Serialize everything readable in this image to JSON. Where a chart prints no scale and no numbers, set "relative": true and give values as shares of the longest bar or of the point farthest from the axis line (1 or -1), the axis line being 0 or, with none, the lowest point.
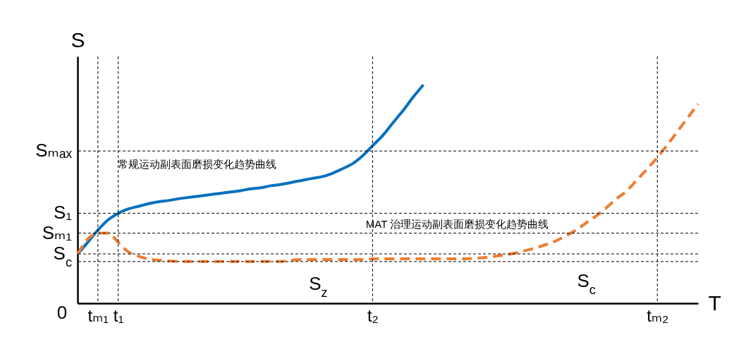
{
  "chart_data": {
    "type": "line",
    "xlabel": "T",
    "ylabel": "S",
    "relative": true,
    "categories": [
      null,
      null,
      "tₘ₁",
      null,
      "t₁",
      null,
      null,
      null,
      null,
      null,
      null,
      null,
      null,
      null,
      null,
      null,
      null,
      null,
      null,
      null,
      null,
      null,
      null,
      null,
      null,
      null,
      null,
      null,
      null,
      "t₂",
      null,
      null,
      null,
      null,
      null,
      null,
      null,
      null,
      null,
      null,
      null,
      null,
      null,
      null,
      null,
      null,
      null,
      null,
      null,
      null,
      null,
      null,
      null,
      null,
      null,
      null,
      null,
      "tₘ₂",
      null,
      null,
      null,
      null
    ],
    "series": [
      {
        "color": "#0070c0",
        "line_style": "solid",
        "values": [
          0.226,
          0.279,
          0.335,
          0.382,
          0.412,
          0.432,
          0.444,
          0.456,
          0.465,
          0.471,
          0.479,
          0.485,
          0.491,
          0.497,
          0.503,
          0.509,
          0.515,
          0.524,
          0.529,
          0.538,
          0.544,
          0.553,
          0.562,
          0.571,
          0.579,
          0.594,
          0.615,
          0.638,
          0.674,
          0.721,
          0.768,
          0.826,
          0.882,
          0.944,
          1,
          null,
          null,
          null,
          null,
          null,
          null,
          null,
          null,
          null,
          null,
          null,
          null,
          null,
          null,
          null,
          null,
          null,
          null,
          null,
          null,
          null,
          null,
          null,
          null,
          null,
          null,
          null
        ]
      },
      {
        "color": "#ed7d31",
        "line_style": "dashed",
        "values": [
          0.226,
          0.294,
          0.321,
          0.321,
          0.279,
          0.235,
          0.215,
          0.203,
          0.197,
          0.194,
          0.191,
          0.191,
          0.191,
          0.191,
          0.191,
          0.191,
          0.191,
          0.191,
          0.191,
          0.191,
          0.191,
          0.197,
          0.2,
          0.2,
          0.2,
          0.2,
          0.2,
          0.2,
          0.2,
          0.203,
          0.203,
          0.203,
          0.203,
          0.203,
          0.203,
          0.203,
          0.203,
          0.203,
          0.203,
          0.206,
          0.209,
          0.215,
          0.221,
          0.229,
          0.241,
          0.253,
          0.268,
          0.285,
          0.309,
          0.335,
          0.368,
          0.4,
          0.438,
          0.479,
          0.515,
          0.565,
          0.615,
          0.668,
          0.726,
          0.788,
          0.85,
          0.912
        ]
      }
    ],
    "ref_lines": [
      {
        "axis": "y",
        "value": 0.697,
        "label": "Sₘₐₓ",
        "color": "#000000",
        "line_style": "dashed"
      },
      {
        "axis": "y",
        "value": 0.412,
        "label": "S₁",
        "color": "#000000",
        "line_style": "dashed"
      },
      {
        "axis": "y",
        "value": 0.321,
        "label": "Sₘ₁",
        "color": "#000000",
        "line_style": "dashed"
      },
      {
        "axis": "y",
        "value": 0.226,
        "label": "S$_{c}$",
        "color": "#000000",
        "line_style": "dashed"
      },
      {
        "axis": "y",
        "value": 0.191,
        "label": null,
        "color": "#000000",
        "line_style": "dashed"
      },
      {
        "axis": "x",
        "value": "tₘ₁",
        "color": "#000000",
        "line_style": "dashed"
      },
      {
        "axis": "x",
        "value": "t₁",
        "color": "#000000",
        "line_style": "dashed"
      },
      {
        "axis": "x",
        "value": "t₂",
        "color": "#000000",
        "line_style": "dashed"
      },
      {
        "axis": "x",
        "value": "tₘ₂",
        "color": "#000000",
        "line_style": "dashed"
      }
    ],
    "annotations": [
      "常规运动副表面磨损变化趋势曲线",
      "MAT 治理运动副表面磨损变化趋势曲线",
      "S$_{z}$",
      "S$_{c}$",
      "0"
    ]
  }
}
